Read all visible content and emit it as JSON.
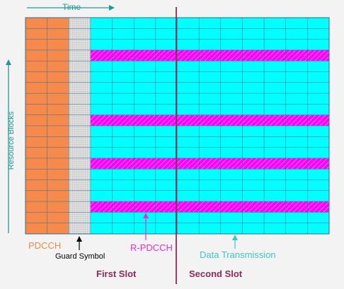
{
  "labels": {
    "time": "Time",
    "resource_blocks": "Resource Blocks",
    "pdcch": "PDCCH",
    "guard_symbol": "Guard Symbol",
    "r_pdcch": "R-PDCCH",
    "data_transmission": "Data Transmission",
    "first_slot": "First Slot",
    "second_slot": "Second Slot"
  },
  "grid": {
    "symbols_per_subframe": 14,
    "resource_block_rows": 20,
    "pdcch_symbols": 2,
    "guard_symbols": 1,
    "r_pdcch_rows": [
      3,
      9,
      13,
      17
    ]
  },
  "colors": {
    "pdcch": "#f58a4c",
    "guard": "#d9d9d9",
    "data": "#00ffff",
    "r_pdcch": "#ff00ff",
    "grid_line": "#2e6e8c",
    "slot_divider": "#8a2b58",
    "axis_arrow": "#1a9b9b",
    "background": "#f3f3f3"
  }
}
